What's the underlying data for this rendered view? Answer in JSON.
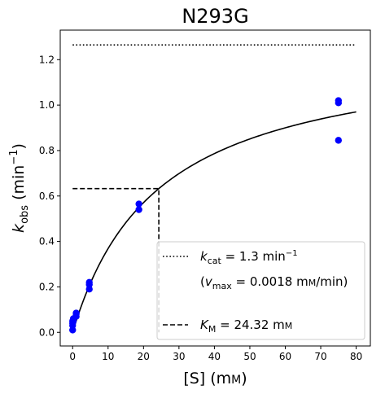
{
  "chart_data": {
    "type": "scatter",
    "title": "N293G",
    "xlabel": {
      "main": "[S] (m",
      "smallcaps": "M",
      "close": ")"
    },
    "ylabel": {
      "k": "k",
      "sub": "obs",
      "unit": " (min",
      "sup": "−1",
      "close": ")"
    },
    "xlim": [
      -3.5,
      84
    ],
    "ylim": [
      -0.06,
      1.33
    ],
    "xticks": [
      0,
      10,
      20,
      30,
      40,
      50,
      60,
      70,
      80
    ],
    "yticks": [
      0.0,
      0.2,
      0.4,
      0.6,
      0.8,
      1.0,
      1.2
    ],
    "ytick_labels": [
      "0.0",
      "0.2",
      "0.4",
      "0.6",
      "0.8",
      "1.0",
      "1.2"
    ],
    "points": {
      "color": "#0000ff",
      "x": [
        0,
        0,
        0,
        0,
        0.2,
        0.2,
        1,
        1,
        1,
        4.7,
        4.7,
        4.7,
        18.7,
        18.7,
        75,
        75,
        75
      ],
      "y": [
        0.01,
        0.03,
        0.05,
        0.04,
        0.05,
        0.06,
        0.07,
        0.08,
        0.085,
        0.19,
        0.21,
        0.22,
        0.54,
        0.565,
        0.845,
        1.01,
        1.02
      ]
    },
    "fit": {
      "kcat": 1.265,
      "KM": 24.32,
      "x_range": [
        0,
        80
      ],
      "color": "#000000"
    },
    "kcat_line": {
      "y": 1.265,
      "x_range": [
        0,
        80
      ],
      "style": "dotted"
    },
    "km_line": {
      "x": 24.32,
      "y": 0.6325,
      "style": "dashed"
    },
    "legend": {
      "placement": "lower-right",
      "kcat": {
        "k": "k",
        "sub": "cat",
        "text": " = 1.3 min",
        "sup": "−1"
      },
      "vmax": {
        "open": "(",
        "v": "v",
        "sub": "max",
        "text": " = 0.0018 m",
        "smallcaps": "M",
        "tail": "/min)"
      },
      "km": {
        "k": "K",
        "sub": "M",
        "text": " = 24.32 m",
        "smallcaps": "M"
      }
    }
  }
}
